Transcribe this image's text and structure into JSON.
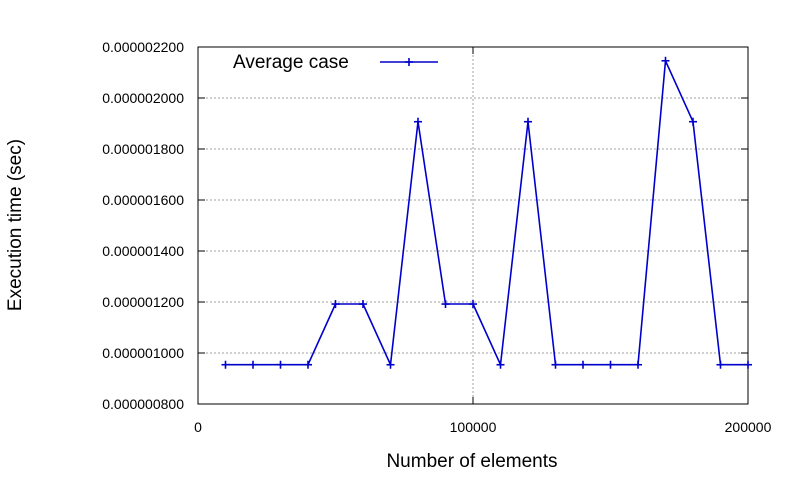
{
  "chart_data": {
    "type": "line",
    "title": "",
    "xlabel": "Number of elements",
    "ylabel": "Execution time (sec)",
    "xlim": [
      0,
      200000
    ],
    "ylim": [
      8e-07,
      2.2e-06
    ],
    "x_ticks": [
      {
        "value": 0,
        "label": "0"
      },
      {
        "value": 100000,
        "label": "100000"
      },
      {
        "value": 200000,
        "label": "200000"
      }
    ],
    "y_ticks": [
      {
        "value": 8e-07,
        "label": "0.000000800"
      },
      {
        "value": 1e-06,
        "label": "0.000001000"
      },
      {
        "value": 1.2e-06,
        "label": "0.000001200"
      },
      {
        "value": 1.4e-06,
        "label": "0.000001400"
      },
      {
        "value": 1.6e-06,
        "label": "0.000001600"
      },
      {
        "value": 1.8e-06,
        "label": "0.000001800"
      },
      {
        "value": 2e-06,
        "label": "0.000002000"
      },
      {
        "value": 2.2e-06,
        "label": "0.000002200"
      }
    ],
    "grid": true,
    "legend_position": "top-left",
    "series": [
      {
        "name": "Average case",
        "color": "#0000cc",
        "marker": "plus",
        "x": [
          10000,
          20000,
          30000,
          40000,
          50000,
          60000,
          70000,
          80000,
          90000,
          100000,
          110000,
          120000,
          130000,
          140000,
          150000,
          160000,
          170000,
          180000,
          190000,
          200000
        ],
        "y": [
          9.54e-07,
          9.54e-07,
          9.54e-07,
          9.54e-07,
          1.192e-06,
          1.192e-06,
          9.54e-07,
          1.907e-06,
          1.192e-06,
          1.192e-06,
          9.54e-07,
          1.907e-06,
          9.54e-07,
          9.54e-07,
          9.54e-07,
          9.54e-07,
          2.146e-06,
          1.907e-06,
          9.54e-07,
          9.54e-07
        ]
      }
    ]
  }
}
